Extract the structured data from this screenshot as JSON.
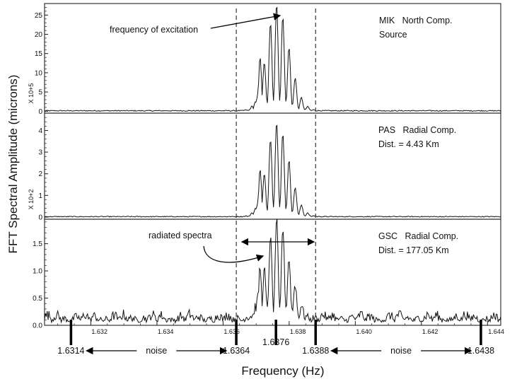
{
  "chart_data": {
    "type": "line",
    "ylabel": "FFT Spectral Amplitude (microns)",
    "xlabel": "Frequency (Hz)",
    "xlim": [
      1.6306,
      1.6444
    ],
    "x_ticks": [
      "1.632",
      "1.634",
      "1.636",
      "1.638",
      "1.640",
      "1.642",
      "1.644"
    ],
    "x_tick_values": [
      1.632,
      1.634,
      1.636,
      1.638,
      1.64,
      1.642,
      1.644
    ],
    "dashed_lines": [
      1.6364,
      1.6388
    ],
    "panels": [
      {
        "station": "MIK",
        "component": "North Comp.",
        "extra": "Source",
        "scale": "X 10+5",
        "ylim": [
          -0.5,
          28
        ],
        "y_ticks": [
          "0",
          "5",
          "10",
          "15",
          "20",
          "25"
        ],
        "y_tick_values": [
          0,
          5,
          10,
          15,
          20,
          25
        ],
        "peak": 28,
        "noise_level": 0.25,
        "annotation": "frequency of excitation"
      },
      {
        "station": "PAS",
        "component": "Radial Comp.",
        "extra": "Dist. = 4.43 Km",
        "scale": "X 10+2",
        "ylim": [
          -0.1,
          4.8
        ],
        "y_ticks": [
          "0",
          "1",
          "2",
          "3",
          "4"
        ],
        "y_tick_values": [
          0,
          1,
          2,
          3,
          4
        ],
        "peak": 4.4,
        "noise_level": 0.04
      },
      {
        "station": "GSC",
        "component": "Radial Comp.",
        "extra": "Dist. = 177.05 Km",
        "scale": "",
        "ylim": [
          0,
          1.95
        ],
        "y_ticks": [
          "0.0",
          "0.5",
          "1.0",
          "1.5"
        ],
        "y_tick_values": [
          0,
          0.5,
          1.0,
          1.5
        ],
        "peak": 1.88,
        "noise_level": 0.25,
        "annotation": "radiated spectra"
      }
    ],
    "markers": [
      {
        "value": 1.6314,
        "label": "1.6314"
      },
      {
        "value": 1.6364,
        "label": "1.6364"
      },
      {
        "value": 1.6376,
        "label": "1.6376"
      },
      {
        "value": 1.6388,
        "label": "1.6388"
      },
      {
        "value": 1.6438,
        "label": "1.6438"
      }
    ],
    "noise_label": "noise"
  }
}
